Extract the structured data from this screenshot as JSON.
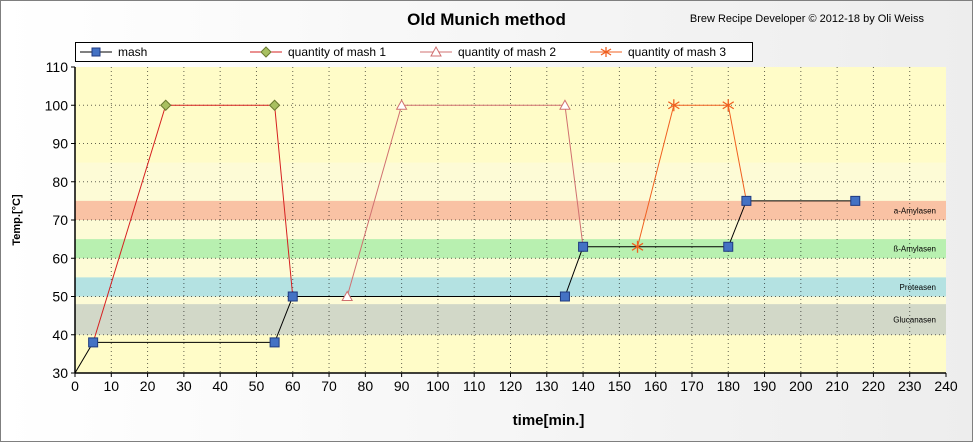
{
  "header": {
    "title": "Old Munich method",
    "credit": "Brew Recipe Developer © 2012-18 by Oli Weiss"
  },
  "chart_data": {
    "type": "line",
    "title": "Old Munich method",
    "xlabel": "time[min.]",
    "ylabel": "Temp.[°C]",
    "xlim": [
      0,
      240
    ],
    "ylim": [
      30,
      110
    ],
    "x_ticks": [
      0,
      10,
      20,
      30,
      40,
      50,
      60,
      70,
      80,
      90,
      100,
      110,
      120,
      130,
      140,
      150,
      160,
      170,
      180,
      190,
      200,
      210,
      220,
      230,
      240
    ],
    "y_ticks": [
      30,
      40,
      50,
      60,
      70,
      80,
      90,
      100,
      110
    ],
    "grid": true,
    "legend_position": "top",
    "bands": [
      {
        "label": "a-Amylasen",
        "y0": 70,
        "y1": 75,
        "color": "#f9c2a4"
      },
      {
        "label": "ß-Amylasen",
        "y0": 60,
        "y1": 65,
        "color": "#b8f0b0"
      },
      {
        "label": "Proteasen",
        "y0": 50,
        "y1": 55,
        "color": "#b4e2e2"
      },
      {
        "label": "Glucanasen",
        "y0": 40,
        "y1": 48,
        "color": "#d2d8c8"
      }
    ],
    "series": [
      {
        "name": "mash",
        "color": "#000000",
        "marker": "square",
        "marker_color": "#4472c4",
        "x": [
          0,
          5,
          55,
          60,
          135,
          140,
          180,
          185,
          215
        ],
        "y": [
          30,
          38,
          38,
          50,
          50,
          63,
          63,
          75,
          75
        ],
        "marker_from": 1
      },
      {
        "name": "quantity of mash 1",
        "color": "#d62020",
        "marker": "diamond",
        "marker_color": "#a8c060",
        "x": [
          5,
          25,
          55,
          60
        ],
        "y": [
          38,
          100,
          100,
          50
        ],
        "marker_indices": [
          1,
          2
        ]
      },
      {
        "name": "quantity of mash 2",
        "color": "#d07070",
        "marker": "triangle",
        "marker_color": "#ffffff",
        "x": [
          75,
          90,
          135,
          140
        ],
        "y": [
          50,
          100,
          100,
          63
        ],
        "marker_indices": [
          0,
          1,
          2
        ]
      },
      {
        "name": "quantity of mash 3",
        "color": "#f06020",
        "marker": "asterisk",
        "marker_color": "#f06020",
        "x": [
          155,
          165,
          180,
          185
        ],
        "y": [
          63,
          100,
          100,
          75
        ],
        "marker_indices": [
          0,
          1,
          2
        ]
      }
    ]
  }
}
